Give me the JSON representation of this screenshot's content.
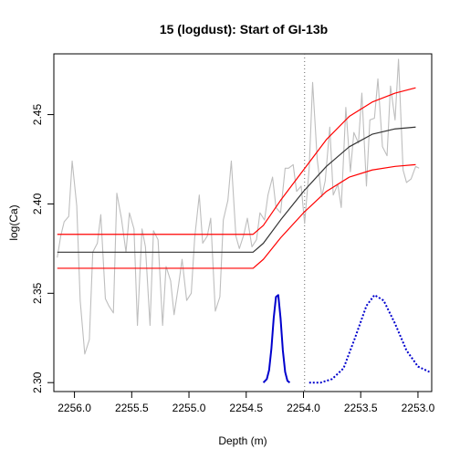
{
  "chart_data": {
    "type": "line",
    "title": "15 (logdust): Start of GI-13b",
    "xlabel": "Depth (m)",
    "ylabel": "log(Ca)",
    "x_reversed": true,
    "xlim": [
      2256.18,
      2252.88
    ],
    "ylim": [
      2.295,
      2.484
    ],
    "x_ticks": [
      2256.0,
      2255.5,
      2255.0,
      2254.5,
      2254.0,
      2253.5,
      2253.0
    ],
    "x_tick_labels": [
      "2256.0",
      "2255.5",
      "2255.0",
      "2254.5",
      "2254.0",
      "2253.5",
      "2253.0"
    ],
    "y_ticks": [
      2.3,
      2.35,
      2.4,
      2.45
    ],
    "y_tick_labels": [
      "2.30",
      "2.35",
      "2.40",
      "2.45"
    ],
    "grid": false,
    "series": [
      {
        "role": "observations",
        "color": "#bebebe",
        "x": [
          2256.15,
          2256.12,
          2256.09,
          2256.05,
          2256.02,
          2255.98,
          2255.95,
          2255.91,
          2255.87,
          2255.84,
          2255.8,
          2255.77,
          2255.73,
          2255.7,
          2255.66,
          2255.63,
          2255.59,
          2255.55,
          2255.52,
          2255.48,
          2255.45,
          2255.41,
          2255.38,
          2255.34,
          2255.31,
          2255.27,
          2255.23,
          2255.2,
          2255.16,
          2255.13,
          2255.09,
          2255.06,
          2255.02,
          2254.98,
          2254.95,
          2254.91,
          2254.88,
          2254.84,
          2254.81,
          2254.77,
          2254.73,
          2254.7,
          2254.66,
          2254.63,
          2254.59,
          2254.56,
          2254.52,
          2254.49,
          2254.45,
          2254.41,
          2254.38,
          2254.34,
          2254.31,
          2254.27,
          2254.24,
          2254.2,
          2254.16,
          2254.13,
          2254.09,
          2254.06,
          2254.02,
          2253.99,
          2253.95,
          2253.92,
          2253.88,
          2253.84,
          2253.81,
          2253.77,
          2253.74,
          2253.7,
          2253.67,
          2253.63,
          2253.59,
          2253.56,
          2253.52,
          2253.49,
          2253.45,
          2253.42,
          2253.38,
          2253.35,
          2253.31,
          2253.27,
          2253.24,
          2253.2,
          2253.17,
          2253.13,
          2253.1,
          2253.06,
          2253.02,
          2252.99
        ],
        "y": [
          2.37,
          2.382,
          2.39,
          2.393,
          2.424,
          2.399,
          2.346,
          2.316,
          2.324,
          2.373,
          2.378,
          2.394,
          2.347,
          2.343,
          2.339,
          2.406,
          2.392,
          2.373,
          2.395,
          2.386,
          2.332,
          2.386,
          2.376,
          2.332,
          2.385,
          2.38,
          2.332,
          2.365,
          2.357,
          2.338,
          2.355,
          2.369,
          2.346,
          2.35,
          2.381,
          2.405,
          2.378,
          2.382,
          2.392,
          2.34,
          2.348,
          2.391,
          2.402,
          2.424,
          2.382,
          2.375,
          2.383,
          2.392,
          2.376,
          2.38,
          2.395,
          2.391,
          2.405,
          2.415,
          2.398,
          2.395,
          2.42,
          2.42,
          2.422,
          2.407,
          2.41,
          2.389,
          2.42,
          2.468,
          2.425,
          2.404,
          2.413,
          2.443,
          2.405,
          2.411,
          2.398,
          2.454,
          2.418,
          2.44,
          2.434,
          2.462,
          2.41,
          2.447,
          2.448,
          2.47,
          2.432,
          2.427,
          2.466,
          2.447,
          2.481,
          2.419,
          2.412,
          2.414,
          2.421,
          2.42
        ]
      },
      {
        "role": "fit",
        "color": "#333333",
        "x": [
          2256.15,
          2254.44,
          2254.35,
          2254.2,
          2254.0,
          2253.8,
          2253.6,
          2253.4,
          2253.2,
          2253.02
        ],
        "y": [
          2.373,
          2.373,
          2.378,
          2.391,
          2.407,
          2.421,
          2.432,
          2.439,
          2.442,
          2.443
        ]
      },
      {
        "role": "upper_band",
        "color": "#ff0000",
        "x": [
          2256.15,
          2254.44,
          2254.35,
          2254.2,
          2254.0,
          2253.8,
          2253.6,
          2253.4,
          2253.2,
          2253.02
        ],
        "y": [
          2.383,
          2.383,
          2.388,
          2.402,
          2.419,
          2.436,
          2.449,
          2.457,
          2.462,
          2.465
        ]
      },
      {
        "role": "lower_band",
        "color": "#ff0000",
        "x": [
          2256.15,
          2254.44,
          2254.35,
          2254.2,
          2254.0,
          2253.8,
          2253.6,
          2253.4,
          2253.2,
          2253.02
        ],
        "y": [
          2.364,
          2.364,
          2.369,
          2.381,
          2.395,
          2.407,
          2.415,
          2.419,
          2.421,
          2.422
        ]
      }
    ],
    "density_curves": [
      {
        "role": "density_solid",
        "color": "#0000cd",
        "dashed": false,
        "x": [
          2254.35,
          2254.32,
          2254.3,
          2254.28,
          2254.26,
          2254.24,
          2254.22,
          2254.2,
          2254.18,
          2254.16,
          2254.14,
          2254.12
        ],
        "y": [
          2.3,
          2.302,
          2.307,
          2.319,
          2.336,
          2.348,
          2.349,
          2.336,
          2.318,
          2.306,
          2.301,
          2.3
        ]
      },
      {
        "role": "density_dashed",
        "color": "#0000cd",
        "dashed": true,
        "x": [
          2253.95,
          2253.85,
          2253.75,
          2253.65,
          2253.55,
          2253.45,
          2253.38,
          2253.3,
          2253.2,
          2253.1,
          2253.0,
          2252.9
        ],
        "y": [
          2.3,
          2.3,
          2.302,
          2.308,
          2.325,
          2.343,
          2.349,
          2.346,
          2.333,
          2.318,
          2.309,
          2.306
        ]
      }
    ],
    "vertical_reference": {
      "x": 2253.99,
      "color": "#666666",
      "dashed": true
    }
  }
}
